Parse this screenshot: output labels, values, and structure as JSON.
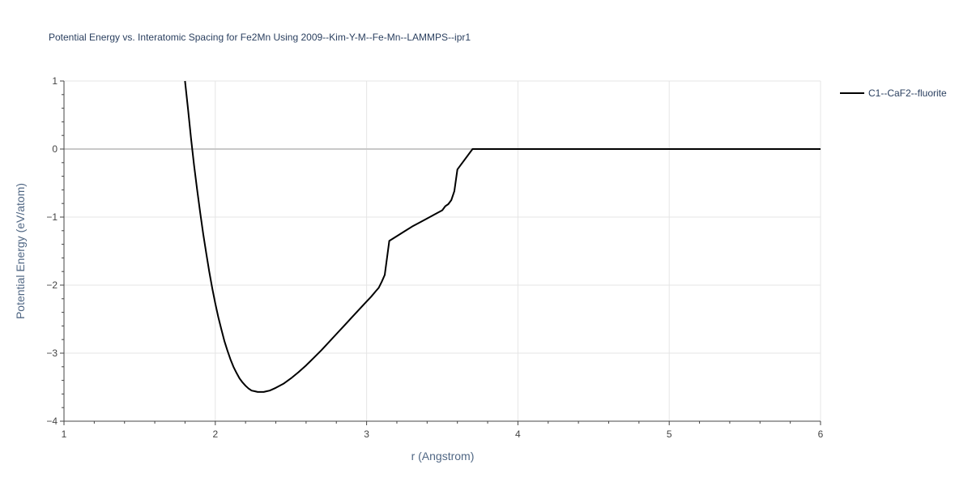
{
  "chart_data": {
    "type": "line",
    "title": "Potential Energy vs. Interatomic Spacing for Fe2Mn Using 2009--Kim-Y-M--Fe-Mn--LAMMPS--ipr1",
    "xlabel": "r (Angstrom)",
    "ylabel": "Potential Energy (eV/atom)",
    "xlim": [
      1,
      6
    ],
    "ylim": [
      -4,
      1
    ],
    "x_ticks": [
      1,
      2,
      3,
      4,
      5,
      6
    ],
    "x_tick_labels": [
      "1",
      "2",
      "3",
      "4",
      "5",
      "6"
    ],
    "y_ticks": [
      1,
      0,
      -1,
      -2,
      -3,
      -4
    ],
    "y_tick_labels": [
      "1",
      "0",
      "−1",
      "−2",
      "−3",
      "−4"
    ],
    "grid": true,
    "legend_position": "top-right",
    "series": [
      {
        "name": "C1--CaF2--fluorite",
        "color": "#000000",
        "x": [
          1.8,
          1.82,
          1.84,
          1.86,
          1.88,
          1.9,
          1.92,
          1.94,
          1.96,
          1.98,
          2.0,
          2.02,
          2.04,
          2.06,
          2.08,
          2.1,
          2.12,
          2.14,
          2.16,
          2.18,
          2.2,
          2.22,
          2.24,
          2.26,
          2.28,
          2.3,
          2.32,
          2.34,
          2.36,
          2.4,
          2.45,
          2.5,
          2.55,
          2.6,
          2.65,
          2.7,
          2.75,
          2.8,
          2.85,
          2.9,
          2.95,
          3.0,
          3.03,
          3.06,
          3.08,
          3.1,
          3.12,
          3.15,
          3.2,
          3.25,
          3.3,
          3.35,
          3.4,
          3.45,
          3.5,
          3.52,
          3.54,
          3.56,
          3.58,
          3.6,
          3.7,
          4.0,
          4.5,
          5.0,
          5.5,
          6.0
        ],
        "y": [
          1.0,
          0.58,
          0.15,
          -0.24,
          -0.6,
          -0.93,
          -1.25,
          -1.53,
          -1.8,
          -2.05,
          -2.27,
          -2.47,
          -2.65,
          -2.82,
          -2.96,
          -3.09,
          -3.2,
          -3.29,
          -3.37,
          -3.43,
          -3.48,
          -3.52,
          -3.55,
          -3.56,
          -3.57,
          -3.57,
          -3.57,
          -3.56,
          -3.55,
          -3.51,
          -3.45,
          -3.37,
          -3.28,
          -3.18,
          -3.07,
          -2.96,
          -2.84,
          -2.72,
          -2.6,
          -2.48,
          -2.36,
          -2.24,
          -2.17,
          -2.09,
          -2.04,
          -1.95,
          -1.85,
          -1.35,
          -1.28,
          -1.21,
          -1.14,
          -1.08,
          -1.02,
          -0.96,
          -0.9,
          -0.84,
          -0.81,
          -0.75,
          -0.62,
          -0.3,
          0.0,
          0.0,
          0.0,
          0.0,
          0.0,
          0.0
        ]
      }
    ]
  }
}
